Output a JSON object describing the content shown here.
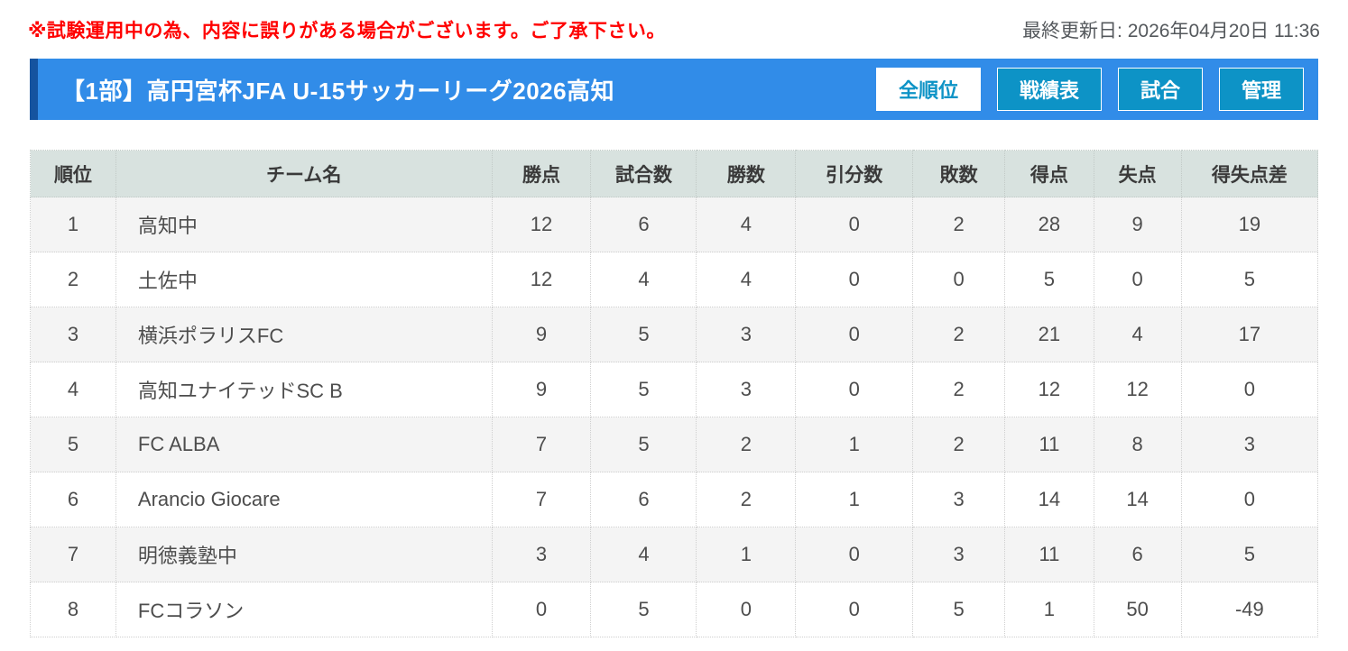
{
  "notice": {
    "text": "※試験運用中の為、内容に誤りがある場合がございます。ご了承下さい。"
  },
  "last_updated": "最終更新日: 2026年04月20日 11:36",
  "header": {
    "title": "【1部】高円宮杯JFA U-15サッカーリーグ2026高知",
    "tabs": [
      {
        "label": "全順位",
        "active": true
      },
      {
        "label": "戦績表",
        "active": false
      },
      {
        "label": "試合",
        "active": false
      },
      {
        "label": "管理",
        "active": false
      }
    ]
  },
  "colors": {
    "notice_red": "#ff0000",
    "bar_blue": "#318ce8",
    "bar_left_accent": "#15539f",
    "button_teal": "#0d93c6",
    "table_header_bg": "#d8e2df",
    "row_alt_bg": "#f4f4f4"
  },
  "table": {
    "columns": [
      "順位",
      "チーム名",
      "勝点",
      "試合数",
      "勝数",
      "引分数",
      "敗数",
      "得点",
      "失点",
      "得失点差"
    ],
    "rows": [
      [
        "1",
        "高知中",
        "12",
        "6",
        "4",
        "0",
        "2",
        "28",
        "9",
        "19"
      ],
      [
        "2",
        "土佐中",
        "12",
        "4",
        "4",
        "0",
        "0",
        "5",
        "0",
        "5"
      ],
      [
        "3",
        "横浜ポラリスFC",
        "9",
        "5",
        "3",
        "0",
        "2",
        "21",
        "4",
        "17"
      ],
      [
        "4",
        "高知ユナイテッドSC B",
        "9",
        "5",
        "3",
        "0",
        "2",
        "12",
        "12",
        "0"
      ],
      [
        "5",
        "FC ALBA",
        "7",
        "5",
        "2",
        "1",
        "2",
        "11",
        "8",
        "3"
      ],
      [
        "6",
        "Arancio Giocare",
        "7",
        "6",
        "2",
        "1",
        "3",
        "14",
        "14",
        "0"
      ],
      [
        "7",
        "明徳義塾中",
        "3",
        "4",
        "1",
        "0",
        "3",
        "11",
        "6",
        "5"
      ],
      [
        "8",
        "FCコラソン",
        "0",
        "5",
        "0",
        "0",
        "5",
        "1",
        "50",
        "-49"
      ]
    ]
  }
}
